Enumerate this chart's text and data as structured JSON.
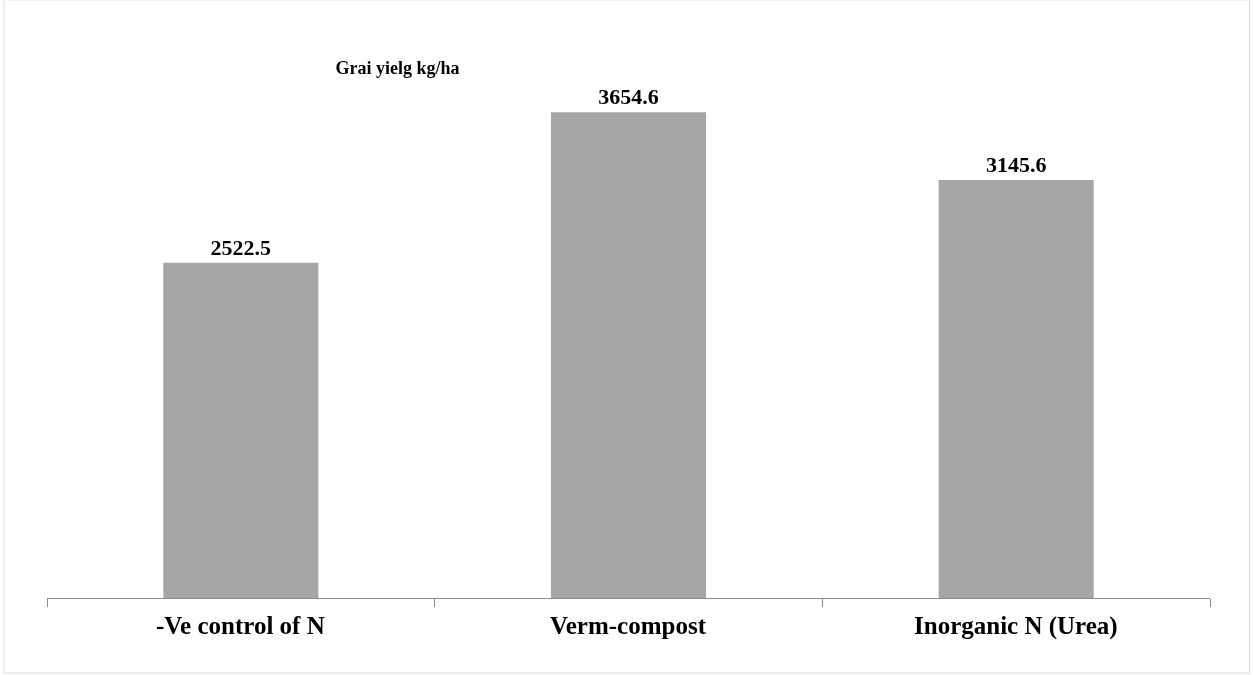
{
  "chart_data": {
    "type": "bar",
    "title": "Grai yielg kg/ha",
    "categories": [
      "-Ve control of N",
      "Verm-compost",
      "Inorganic N (Urea)"
    ],
    "values": [
      2522.5,
      3654.6,
      3145.6
    ],
    "color": "#a6a6a6",
    "data_labels": true,
    "legend": false,
    "tick_labels": "x"
  }
}
